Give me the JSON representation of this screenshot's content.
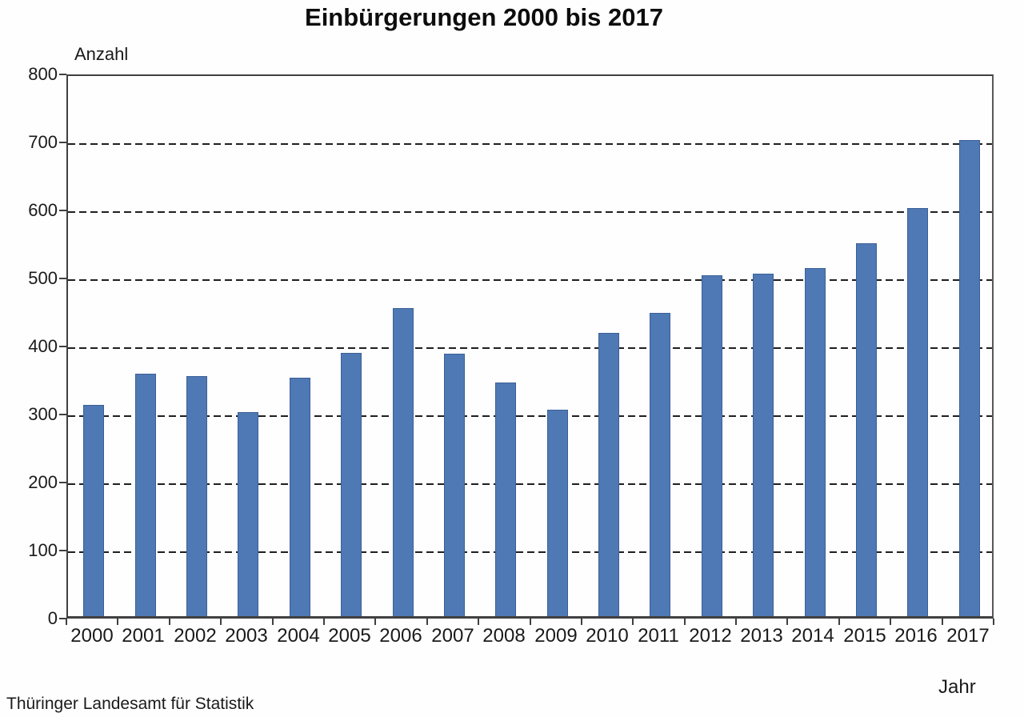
{
  "title": "Einbürgerungen 2000 bis 2017",
  "y_axis_title": "Anzahl",
  "x_axis_title": "Jahr",
  "source": "Thüringer Landesamt für Statistik",
  "colors": {
    "bar_fill": "#4E79B5",
    "bar_border": "#3C6096",
    "axis_line": "#404040",
    "gridline": "#1f1f1f",
    "text": "#1a1a1a",
    "background": "#fefefe"
  },
  "chart_data": {
    "type": "bar",
    "title": "Einbürgerungen 2000 bis 2017",
    "xlabel": "Jahr",
    "ylabel": "Anzahl",
    "categories": [
      "2000",
      "2001",
      "2002",
      "2003",
      "2004",
      "2005",
      "2006",
      "2007",
      "2008",
      "2009",
      "2010",
      "2011",
      "2012",
      "2013",
      "2014",
      "2015",
      "2016",
      "2017"
    ],
    "values": [
      311,
      356,
      353,
      300,
      350,
      387,
      453,
      386,
      344,
      304,
      416,
      446,
      501,
      503,
      512,
      548,
      600,
      700
    ],
    "ylim": [
      0,
      800
    ],
    "ytick_interval": 100,
    "ytick_labels": [
      "0",
      "100",
      "200",
      "300",
      "400",
      "500",
      "600",
      "700",
      "800"
    ],
    "grid": "horizontal-dashed",
    "legend": "none",
    "source": "Thüringer Landesamt für Statistik"
  }
}
